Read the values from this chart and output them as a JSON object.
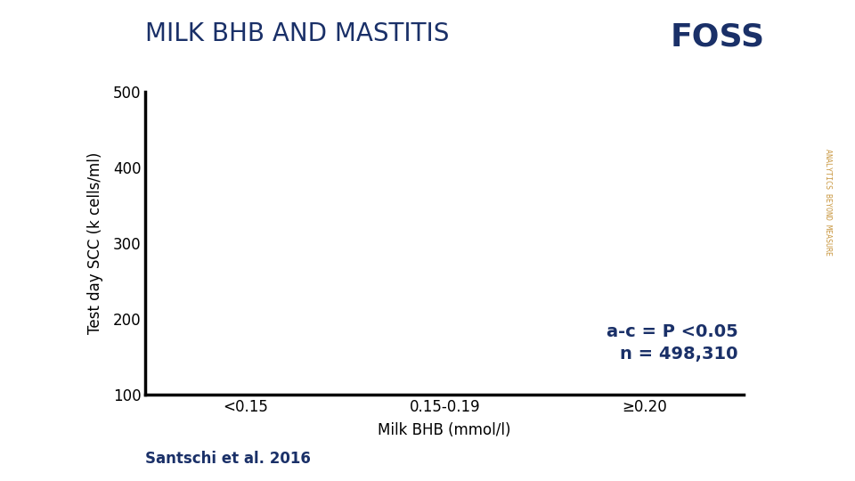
{
  "title": "MILK BHB AND MASTITIS",
  "title_color": "#1a3068",
  "title_fontsize": 20,
  "title_fontweight": "normal",
  "ylabel": "Test day SCC (k cells/ml)",
  "ylabel_color": "#000000",
  "ylabel_fontsize": 12,
  "xlabel": "Milk BHB (mmol/l)",
  "xlabel_color": "#000000",
  "xlabel_fontsize": 12,
  "xtick_labels": [
    "<0.15",
    "0.15-0.19",
    "≥0.20"
  ],
  "ytick_values": [
    100,
    200,
    300,
    400,
    500
  ],
  "ylim": [
    100,
    500
  ],
  "annotation_line1": "a-c = P <0.05",
  "annotation_line2": "n = 498,310",
  "annotation_color": "#1a3068",
  "annotation_fontsize": 14,
  "annotation_fontweight": "bold",
  "foss_text": "FOSS",
  "foss_color": "#1a3068",
  "foss_fontsize": 26,
  "foss_fontweight": "bold",
  "side_text": "ANALYTICS BEYOND MEASURE",
  "side_text_color": "#c8963e",
  "side_text_fontsize": 6,
  "footer_text": "Santschi et al. 2016",
  "footer_color": "#1a3068",
  "footer_fontsize": 12,
  "footer_fontweight": "bold",
  "background_color": "#ffffff",
  "axis_color": "#000000",
  "tick_color": "#000000",
  "spine_linewidth": 2.5
}
